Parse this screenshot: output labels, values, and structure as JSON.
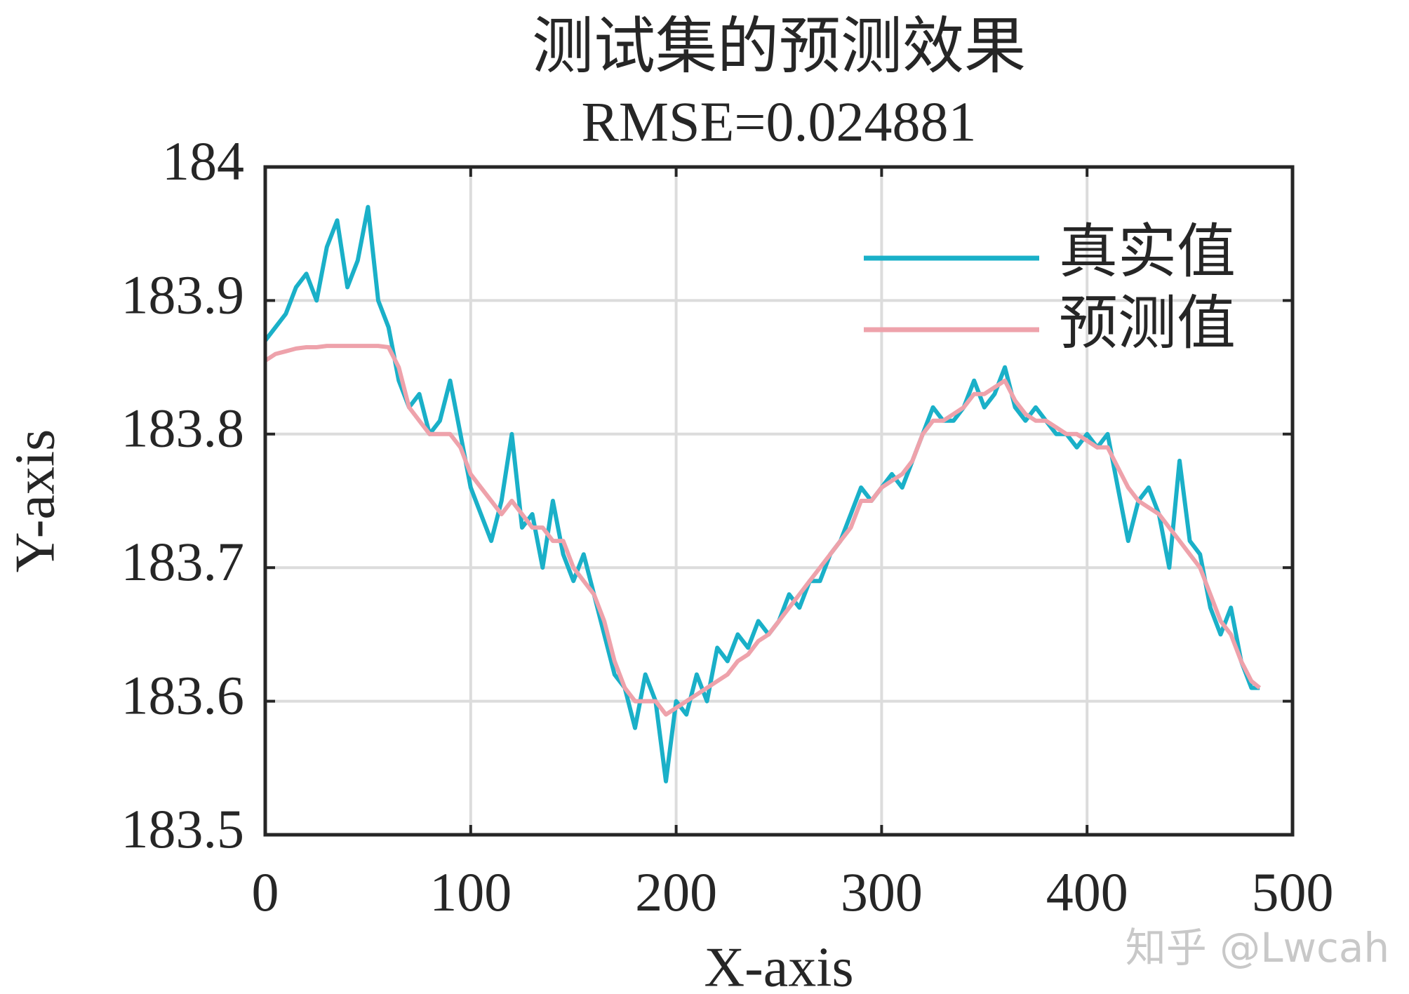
{
  "chart_data": {
    "type": "line",
    "title": "测试集的预测效果",
    "subtitle": "RMSE=0.024881",
    "x_label": "X-axis",
    "y_label": "Y-axis",
    "watermark": "知乎 @Lwcah",
    "x": [
      0,
      5,
      10,
      15,
      20,
      25,
      30,
      35,
      40,
      45,
      50,
      55,
      60,
      65,
      70,
      75,
      80,
      85,
      90,
      95,
      100,
      105,
      110,
      115,
      120,
      125,
      130,
      135,
      140,
      145,
      150,
      155,
      160,
      165,
      170,
      175,
      180,
      185,
      190,
      195,
      200,
      205,
      210,
      215,
      220,
      225,
      230,
      235,
      240,
      245,
      250,
      255,
      260,
      265,
      270,
      275,
      280,
      285,
      290,
      295,
      300,
      305,
      310,
      315,
      320,
      325,
      330,
      335,
      340,
      345,
      350,
      355,
      360,
      365,
      370,
      375,
      380,
      385,
      390,
      395,
      400,
      405,
      410,
      415,
      420,
      425,
      430,
      435,
      440,
      445,
      450,
      455,
      460,
      465,
      470,
      475,
      480,
      484
    ],
    "series": [
      {
        "name": "真实值",
        "color": "#1ab0c8",
        "values": [
          183.87,
          183.88,
          183.89,
          183.91,
          183.92,
          183.9,
          183.94,
          183.96,
          183.91,
          183.93,
          183.97,
          183.9,
          183.88,
          183.84,
          183.82,
          183.83,
          183.8,
          183.81,
          183.84,
          183.8,
          183.76,
          183.74,
          183.72,
          183.75,
          183.8,
          183.73,
          183.74,
          183.7,
          183.75,
          183.71,
          183.69,
          183.71,
          183.68,
          183.65,
          183.62,
          183.61,
          183.58,
          183.62,
          183.6,
          183.54,
          183.6,
          183.59,
          183.62,
          183.6,
          183.64,
          183.63,
          183.65,
          183.64,
          183.66,
          183.65,
          183.66,
          183.68,
          183.67,
          183.69,
          183.69,
          183.71,
          183.72,
          183.74,
          183.76,
          183.75,
          183.76,
          183.77,
          183.76,
          183.78,
          183.8,
          183.82,
          183.81,
          183.81,
          183.82,
          183.84,
          183.82,
          183.83,
          183.85,
          183.82,
          183.81,
          183.82,
          183.81,
          183.8,
          183.8,
          183.79,
          183.8,
          183.79,
          183.8,
          183.76,
          183.72,
          183.75,
          183.76,
          183.74,
          183.7,
          183.78,
          183.72,
          183.71,
          183.67,
          183.65,
          183.67,
          183.63,
          183.61,
          183.61
        ]
      },
      {
        "name": "预测值",
        "color": "#eea2ab",
        "values": [
          183.855,
          183.86,
          183.862,
          183.864,
          183.865,
          183.865,
          183.866,
          183.866,
          183.866,
          183.866,
          183.866,
          183.866,
          183.865,
          183.85,
          183.82,
          183.81,
          183.8,
          183.8,
          183.8,
          183.79,
          183.77,
          183.76,
          183.75,
          183.74,
          183.75,
          183.74,
          183.73,
          183.73,
          183.72,
          183.72,
          183.7,
          183.69,
          183.68,
          183.66,
          183.63,
          183.61,
          183.6,
          183.6,
          183.6,
          183.59,
          183.595,
          183.6,
          183.605,
          183.61,
          183.615,
          183.62,
          183.63,
          183.635,
          183.645,
          183.65,
          183.66,
          183.67,
          183.68,
          183.69,
          183.7,
          183.71,
          183.72,
          183.73,
          183.75,
          183.75,
          183.76,
          183.765,
          183.77,
          183.78,
          183.8,
          183.81,
          183.81,
          183.815,
          183.82,
          183.83,
          183.83,
          183.835,
          183.84,
          183.825,
          183.815,
          183.81,
          183.81,
          183.805,
          183.8,
          183.8,
          183.795,
          183.79,
          183.79,
          183.775,
          183.76,
          183.75,
          183.745,
          183.74,
          183.73,
          183.72,
          183.71,
          183.7,
          183.68,
          183.66,
          183.65,
          183.63,
          183.615,
          183.61
        ]
      }
    ],
    "xlim": [
      0,
      500
    ],
    "xticks": [
      0,
      100,
      200,
      300,
      400,
      500
    ],
    "ylim": [
      183.5,
      184
    ],
    "yticks": [
      183.5,
      183.6,
      183.7,
      183.8,
      183.9,
      184
    ],
    "grid": true,
    "legend": "upper right"
  }
}
